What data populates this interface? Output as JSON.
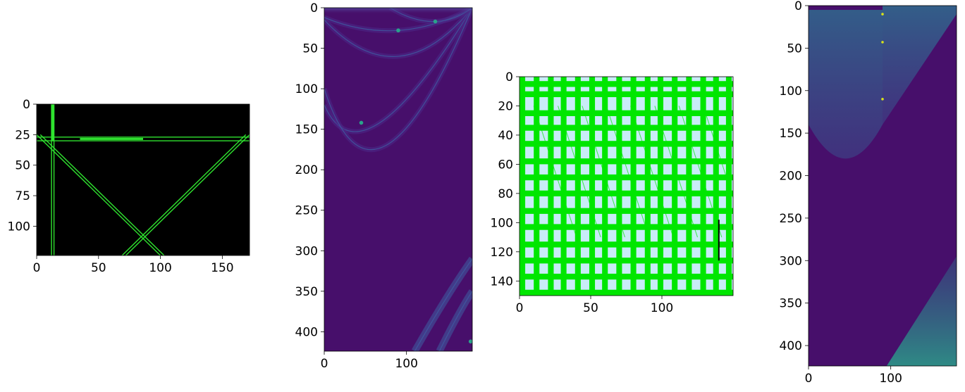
{
  "figure": {
    "background": "#ffffff",
    "panel_count": 4
  },
  "chart_data": [
    {
      "type": "heatmap",
      "subject": "binary edge image (green lines on black)",
      "colors": {
        "background": "#000000",
        "line": "#2fe32f"
      },
      "xlim": [
        0,
        172
      ],
      "ylim": [
        124,
        0
      ],
      "x_ticks": [
        0,
        50,
        100,
        150
      ],
      "y_ticks": [
        0,
        25,
        50,
        75,
        100
      ],
      "segments": [
        {
          "x1": 12,
          "y1": 0,
          "x2": 12,
          "y2": 124
        },
        {
          "x1": 14,
          "y1": 0,
          "x2": 14,
          "y2": 124
        },
        {
          "x1": 0,
          "y1": 27,
          "x2": 172,
          "y2": 27
        },
        {
          "x1": 0,
          "y1": 30,
          "x2": 172,
          "y2": 30
        },
        {
          "x1": 0,
          "y1": 25,
          "x2": 100,
          "y2": 124
        },
        {
          "x1": 3,
          "y1": 25,
          "x2": 103,
          "y2": 124
        },
        {
          "x1": 172,
          "y1": 25,
          "x2": 72,
          "y2": 124
        },
        {
          "x1": 169,
          "y1": 25,
          "x2": 69,
          "y2": 124
        }
      ]
    },
    {
      "type": "heatmap",
      "subject": "Hough accumulator (viridis)",
      "colormap": "viridis",
      "colors": {
        "background": "#470f6b",
        "low": "#4a2a88",
        "mid": "#3e5ea3",
        "high": "#2aa28a",
        "peak": "#6ed35a"
      },
      "xlim": [
        0,
        180
      ],
      "ylim": [
        424,
        0
      ],
      "x_ticks": [
        0,
        100
      ],
      "y_ticks": [
        0,
        50,
        100,
        150,
        200,
        250,
        300,
        350,
        400
      ],
      "peaks": [
        {
          "theta": 90,
          "rho": 28
        },
        {
          "theta": 135,
          "rho": 17
        },
        {
          "theta": 45,
          "rho": 142
        },
        {
          "theta": 178,
          "rho": 412
        }
      ],
      "curves": [
        {
          "theta0": 0,
          "rho0": 12,
          "theta1": 90,
          "rho1": 28,
          "theta2": 180,
          "rho2": 0
        },
        {
          "theta0": 0,
          "rho0": 15,
          "theta1": 90,
          "rho1": 60,
          "theta2": 180,
          "rho2": 0
        },
        {
          "theta0": 0,
          "rho0": 120,
          "theta1": 45,
          "rho1": 142,
          "theta2": 180,
          "rho2": 0
        },
        {
          "theta0": 0,
          "rho0": 100,
          "theta1": 60,
          "rho1": 170,
          "theta2": 180,
          "rho2": 0
        },
        {
          "theta0": 80,
          "rho0": 0,
          "theta1": 135,
          "rho1": 17,
          "theta2": 180,
          "rho2": 0
        },
        {
          "theta0": 110,
          "rho0": 424,
          "theta1": 150,
          "rho1": 360,
          "theta2": 180,
          "rho2": 310
        },
        {
          "theta0": 140,
          "rho0": 424,
          "theta1": 165,
          "rho1": 380,
          "theta2": 180,
          "rho2": 350
        }
      ]
    },
    {
      "type": "heatmap",
      "subject": "grid of green bands on light blue",
      "colors": {
        "background": "#c8ecf7",
        "band": "#00e600",
        "mark": "#000000"
      },
      "xlim": [
        0,
        150
      ],
      "ylim": [
        150,
        0
      ],
      "x_ticks": [
        0,
        50,
        100
      ],
      "y_ticks": [
        0,
        20,
        40,
        60,
        80,
        100,
        120,
        140
      ],
      "vertical_bands": [
        0,
        10,
        20,
        29,
        39,
        49,
        58,
        68,
        78,
        88,
        97,
        107,
        117,
        127,
        136,
        145
      ],
      "horizontal_bands": [
        5,
        12,
        25,
        35,
        46,
        58,
        69,
        80,
        92,
        103,
        115,
        126,
        137,
        148
      ],
      "band_width": 4
    },
    {
      "type": "heatmap",
      "subject": "Hough accumulator, second view (viridis)",
      "colormap": "viridis",
      "colors": {
        "background": "#470f6b",
        "low": "#3e4c8a",
        "mid": "#31688e",
        "high": "#2a9a8a",
        "peak": "#d8e219"
      },
      "xlim": [
        0,
        180
      ],
      "ylim": [
        424,
        0
      ],
      "x_ticks": [
        0,
        100
      ],
      "y_ticks": [
        0,
        50,
        100,
        150,
        200,
        250,
        300,
        350,
        400
      ],
      "filled_regions": [
        {
          "kind": "arc",
          "theta_start": 0,
          "theta_end": 90,
          "rho_top": 0,
          "rho_bottom": 195,
          "apex_theta": 45
        },
        {
          "kind": "wedge",
          "theta_start": 90,
          "theta_end": 180,
          "rho_top": 0,
          "rho_bottom": 140
        },
        {
          "kind": "wedge-bottom",
          "theta_start": 95,
          "theta_end": 180,
          "rho_top": 295,
          "rho_bottom": 424
        }
      ],
      "peaks": [
        {
          "theta": 90,
          "rho": 10
        },
        {
          "theta": 90,
          "rho": 43
        },
        {
          "theta": 90,
          "rho": 110
        }
      ]
    }
  ]
}
